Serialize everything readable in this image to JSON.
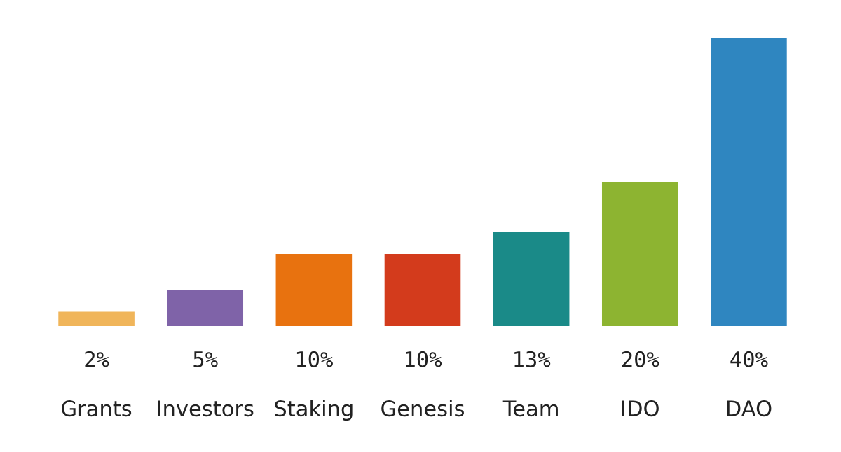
{
  "chart_data": {
    "type": "bar",
    "categories": [
      "Grants",
      "Investors",
      "Staking",
      "Genesis",
      "Team",
      "IDO",
      "DAO"
    ],
    "values": [
      2,
      5,
      10,
      10,
      13,
      20,
      40
    ],
    "value_labels": [
      "2%",
      "5%",
      "10%",
      "10%",
      "13%",
      "20%",
      "40%"
    ],
    "colors": [
      "#f0b55a",
      "#7f63a8",
      "#e8720f",
      "#d33b1c",
      "#1a8a88",
      "#8db431",
      "#2f86c0"
    ],
    "grid": false,
    "legend": false
  }
}
